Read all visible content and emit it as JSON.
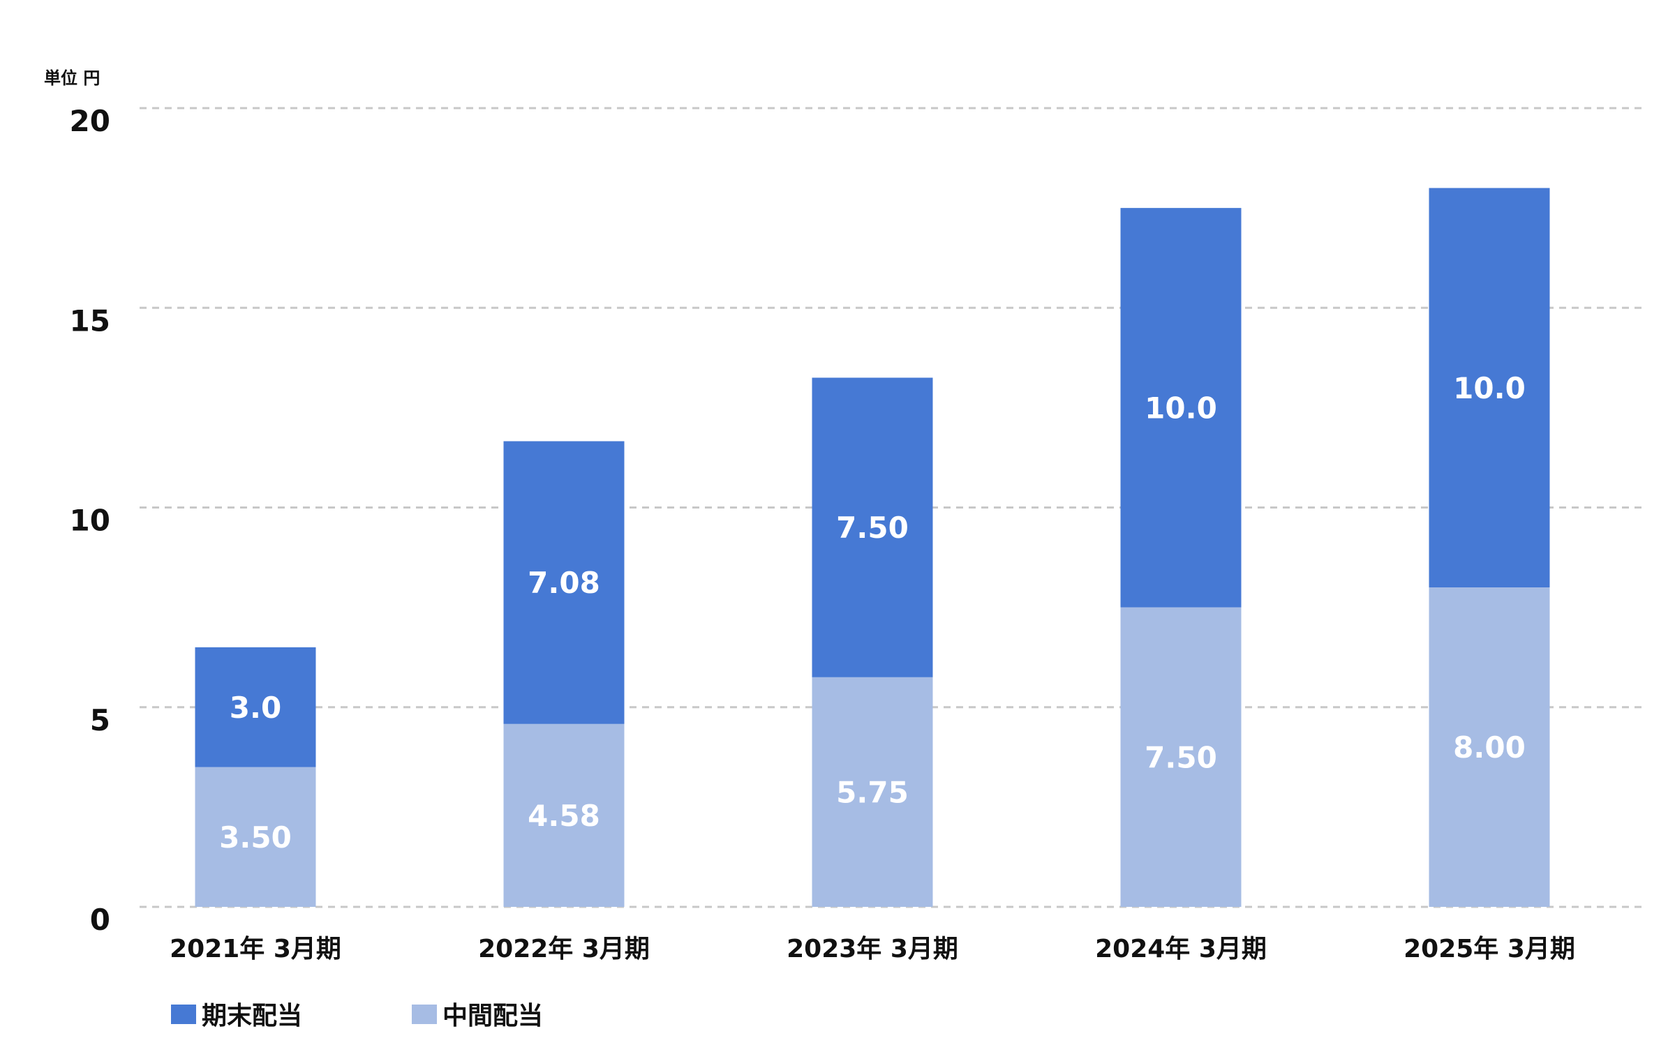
{
  "chart_data": {
    "type": "bar",
    "stacked": true,
    "unit_label": "単位 円",
    "categories": [
      "2021年 3月期",
      "2022年 3月期",
      "2023年 3月期",
      "2024年 3月期",
      "2025年 3月期"
    ],
    "series": [
      {
        "name": "中間配当",
        "color": "#a6bce4",
        "values": [
          3.5,
          4.58,
          5.75,
          7.5,
          8.0
        ],
        "labels": [
          "3.50",
          "4.58",
          "5.75",
          "7.50",
          "8.00"
        ]
      },
      {
        "name": "期末配当",
        "color": "#4679d4",
        "values": [
          3.0,
          7.08,
          7.5,
          10.0,
          10.0
        ],
        "labels": [
          "3.0",
          "7.08",
          "7.50",
          "10.0",
          "10.0"
        ]
      }
    ],
    "yticks": [
      "0",
      "5",
      "10",
      "15",
      "20"
    ],
    "ylim": [
      0,
      20
    ],
    "grid": true,
    "grid_style": "dashed",
    "grid_color": "#c8c8c8",
    "legend": {
      "position": "bottom-left",
      "order": [
        "期末配当",
        "中間配当"
      ]
    }
  }
}
